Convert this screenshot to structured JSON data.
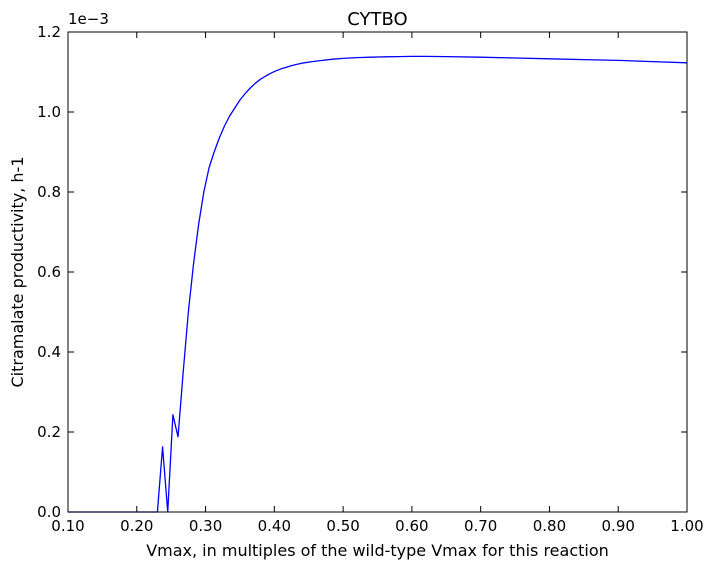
{
  "chart_data": {
    "type": "line",
    "title": "CYTBO",
    "xlabel": "Vmax, in multiples of the wild-type Vmax for this reaction",
    "ylabel": "Citramalate productivity, h-1",
    "y_scale_label": "1e−3",
    "xlim": [
      0.1,
      1.0
    ],
    "ylim": [
      0.0,
      1.2
    ],
    "x_ticks": [
      0.1,
      0.2,
      0.3,
      0.4,
      0.5,
      0.6,
      0.7,
      0.8,
      0.9,
      1.0
    ],
    "x_tick_labels": [
      "0.10",
      "0.20",
      "0.30",
      "0.40",
      "0.50",
      "0.60",
      "0.70",
      "0.80",
      "0.90",
      "1.00"
    ],
    "y_ticks": [
      0.0,
      0.2,
      0.4,
      0.6,
      0.8,
      1.0,
      1.2
    ],
    "y_tick_labels": [
      "0.0",
      "0.2",
      "0.4",
      "0.6",
      "0.8",
      "1.0",
      "1.2"
    ],
    "grid": false,
    "series": [
      {
        "color": "#0000ff",
        "x": [
          0.1,
          0.15,
          0.2,
          0.23,
          0.2375,
          0.245,
          0.2525,
          0.26,
          0.2675,
          0.275,
          0.2825,
          0.29,
          0.2975,
          0.305,
          0.3125,
          0.32,
          0.3275,
          0.335,
          0.3425,
          0.35,
          0.3575,
          0.365,
          0.3725,
          0.38,
          0.3875,
          0.395,
          0.4025,
          0.41,
          0.4175,
          0.425,
          0.4325,
          0.44,
          0.455,
          0.47,
          0.485,
          0.5,
          0.52,
          0.54,
          0.56,
          0.58,
          0.6,
          0.62,
          0.65,
          0.7,
          0.75,
          0.8,
          0.85,
          0.9,
          0.95,
          1.0
        ],
        "y": [
          0.0,
          0.0,
          0.0,
          0.0,
          0.163,
          0.0,
          0.243,
          0.188,
          0.35,
          0.5,
          0.62,
          0.72,
          0.8,
          0.86,
          0.9,
          0.935,
          0.965,
          0.99,
          1.01,
          1.03,
          1.046,
          1.06,
          1.072,
          1.082,
          1.09,
          1.097,
          1.103,
          1.108,
          1.112,
          1.116,
          1.119,
          1.122,
          1.126,
          1.129,
          1.132,
          1.134,
          1.136,
          1.137,
          1.138,
          1.1385,
          1.139,
          1.139,
          1.1385,
          1.137,
          1.135,
          1.133,
          1.131,
          1.129,
          1.126,
          1.123
        ]
      }
    ]
  }
}
